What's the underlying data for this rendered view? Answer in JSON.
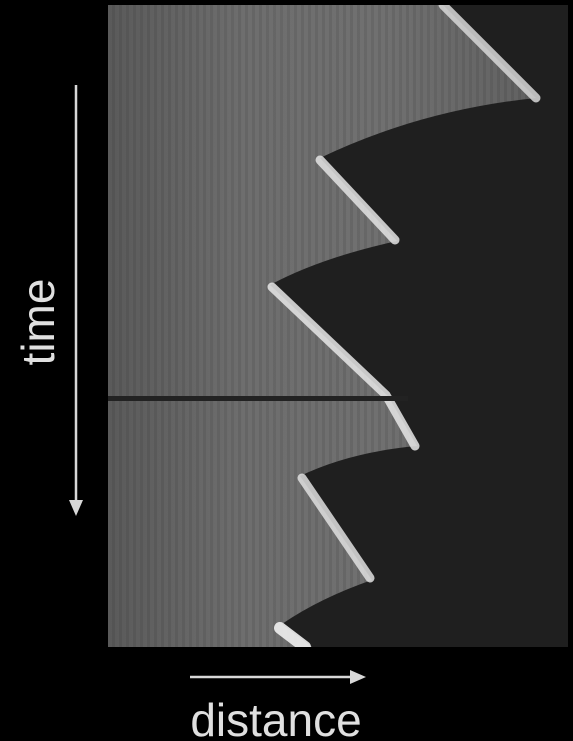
{
  "labels": {
    "time": "time",
    "distance": "distance"
  }
}
